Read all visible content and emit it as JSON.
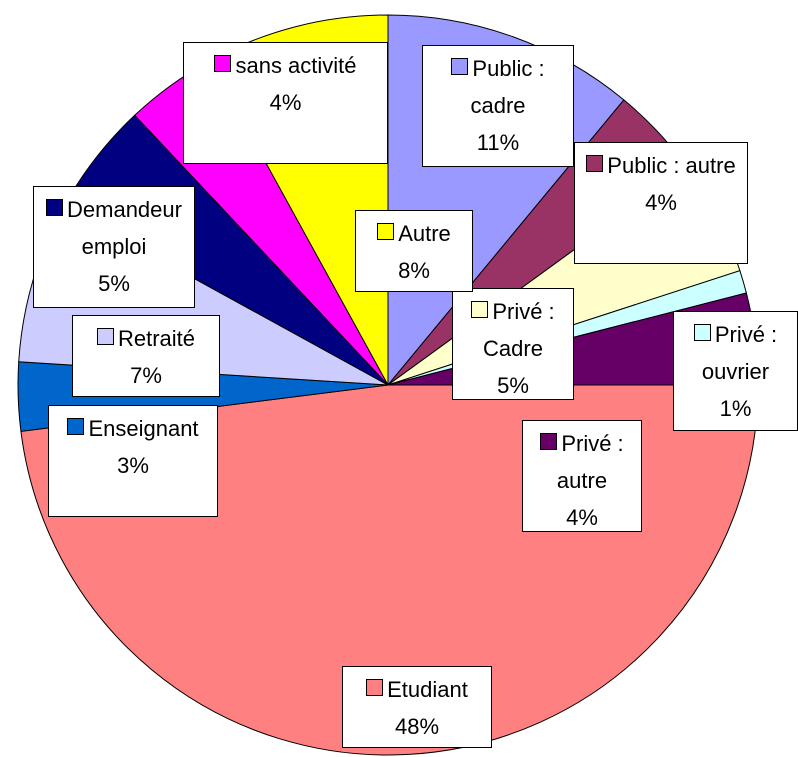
{
  "chart_data": {
    "type": "pie",
    "categories": [
      "Public : cadre",
      "Public : autre",
      "Privé : Cadre",
      "Privé : ouvrier",
      "Privé : autre",
      "Etudiant",
      "Enseignant",
      "Retraité",
      "Demandeur emploi",
      "sans activité",
      "Autre"
    ],
    "values": [
      11,
      4,
      5,
      1,
      4,
      48,
      3,
      7,
      5,
      4,
      8
    ],
    "value_labels": [
      "11%",
      "4%",
      "5%",
      "1%",
      "4%",
      "48%",
      "3%",
      "7%",
      "5%",
      "4%",
      "8%"
    ],
    "colors": [
      "#9999ff",
      "#993366",
      "#ffffcc",
      "#ccffff",
      "#660066",
      "#ff8080",
      "#0066cc",
      "#ccccff",
      "#000080",
      "#ff00ff",
      "#ffff00"
    ]
  }
}
